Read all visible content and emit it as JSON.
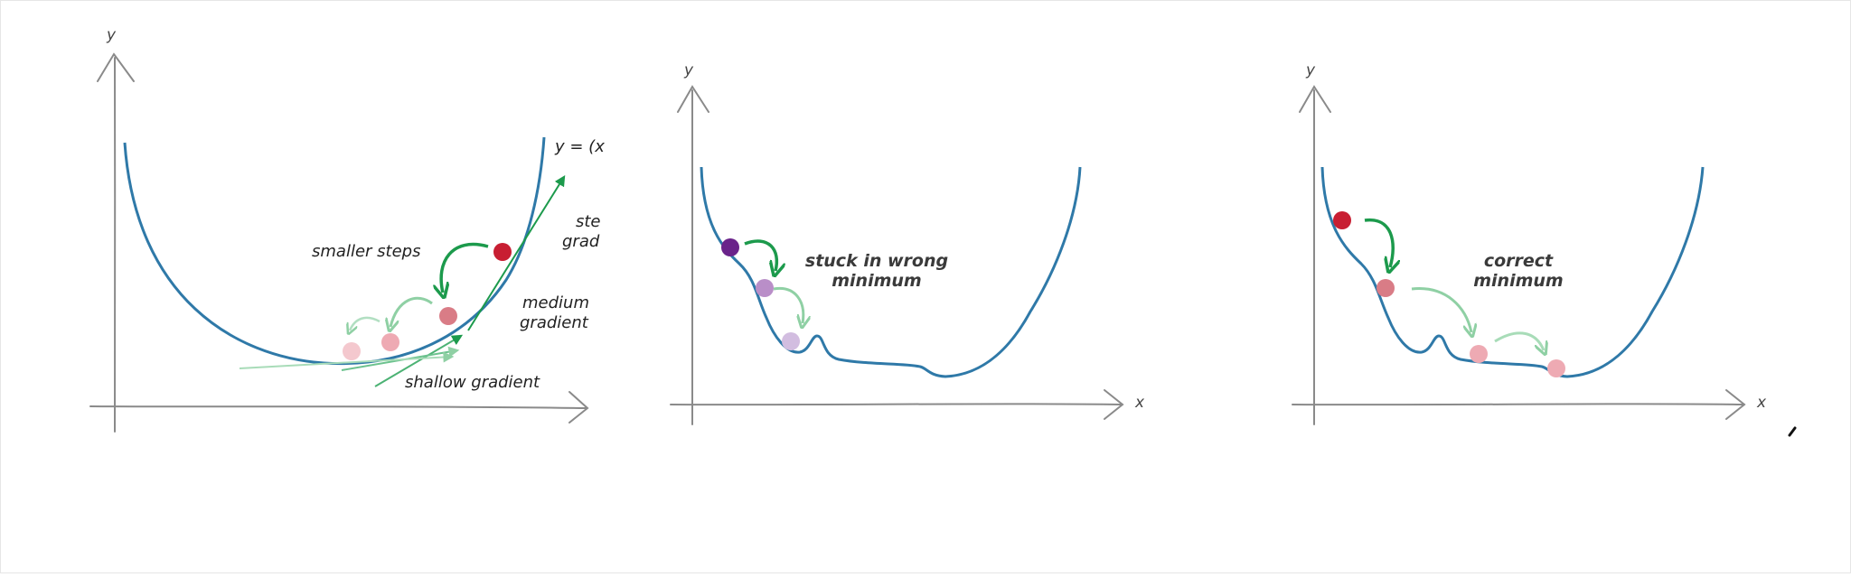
{
  "colors": {
    "curve": "#2f79a8",
    "axis": "#8a8a8a",
    "arrow_dark": "#1c9a4c",
    "arrow_light": "#8fd0a4",
    "ball_red": "#c81e32",
    "ball_medium": "#d97c86",
    "ball_light": "#f0b5bd",
    "ball_purple_dark": "#6a238a",
    "ball_purple_mid": "#b98ec8",
    "ball_purple_light": "#d2bde0"
  },
  "panel1": {
    "y_axis_label": "y",
    "equation_label": "y = (x",
    "smaller_steps": "smaller steps",
    "steep_gradient_line1": "ste",
    "steep_gradient_line2": "grad",
    "medium_gradient_line1": "medium",
    "medium_gradient_line2": "gradient",
    "shallow_gradient": "shallow gradient"
  },
  "panel2": {
    "y_axis_label": "y",
    "x_axis_label": "x",
    "annotation_line1": "stuck in wrong",
    "annotation_line2": "minimum"
  },
  "panel3": {
    "y_axis_label": "y",
    "x_axis_label": "x",
    "annotation_line1": "correct",
    "annotation_line2": "minimum"
  }
}
